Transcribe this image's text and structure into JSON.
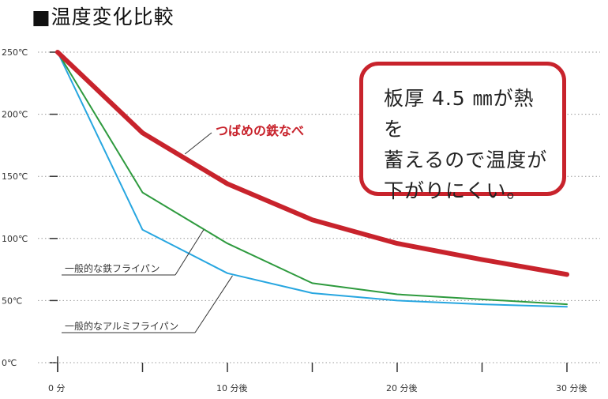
{
  "chart_data": {
    "type": "line",
    "title": "■温度変化比較",
    "x": [
      0,
      5,
      10,
      15,
      20,
      25,
      30
    ],
    "x_tick_values": [
      0,
      10,
      20,
      30
    ],
    "x_tick_labels": [
      "0 分",
      "10 分後",
      "20 分後",
      "30 分後"
    ],
    "y_tick_values": [
      0,
      50,
      100,
      150,
      200,
      250
    ],
    "y_tick_labels": [
      "0℃",
      "50℃",
      "100℃",
      "150℃",
      "200℃",
      "250℃"
    ],
    "xlim": [
      0,
      30
    ],
    "ylim": [
      0,
      250
    ],
    "grid": "horizontal dotted",
    "series": [
      {
        "name": "つばめの鉄なべ",
        "color": "#c8232c",
        "values": [
          250,
          185,
          144,
          115,
          96,
          83,
          71
        ]
      },
      {
        "name": "一般的な鉄フライパン",
        "color": "#2e9a3e",
        "values": [
          250,
          137,
          96,
          64,
          55,
          51,
          47
        ]
      },
      {
        "name": "一般的なアルミフライパン",
        "color": "#27a6e0",
        "values": [
          250,
          107,
          72,
          56,
          50,
          47,
          45
        ]
      }
    ],
    "annotation": "板厚 4.5 ㎜が熱を\n蓄えるので温度が\n下がりにくい。"
  }
}
